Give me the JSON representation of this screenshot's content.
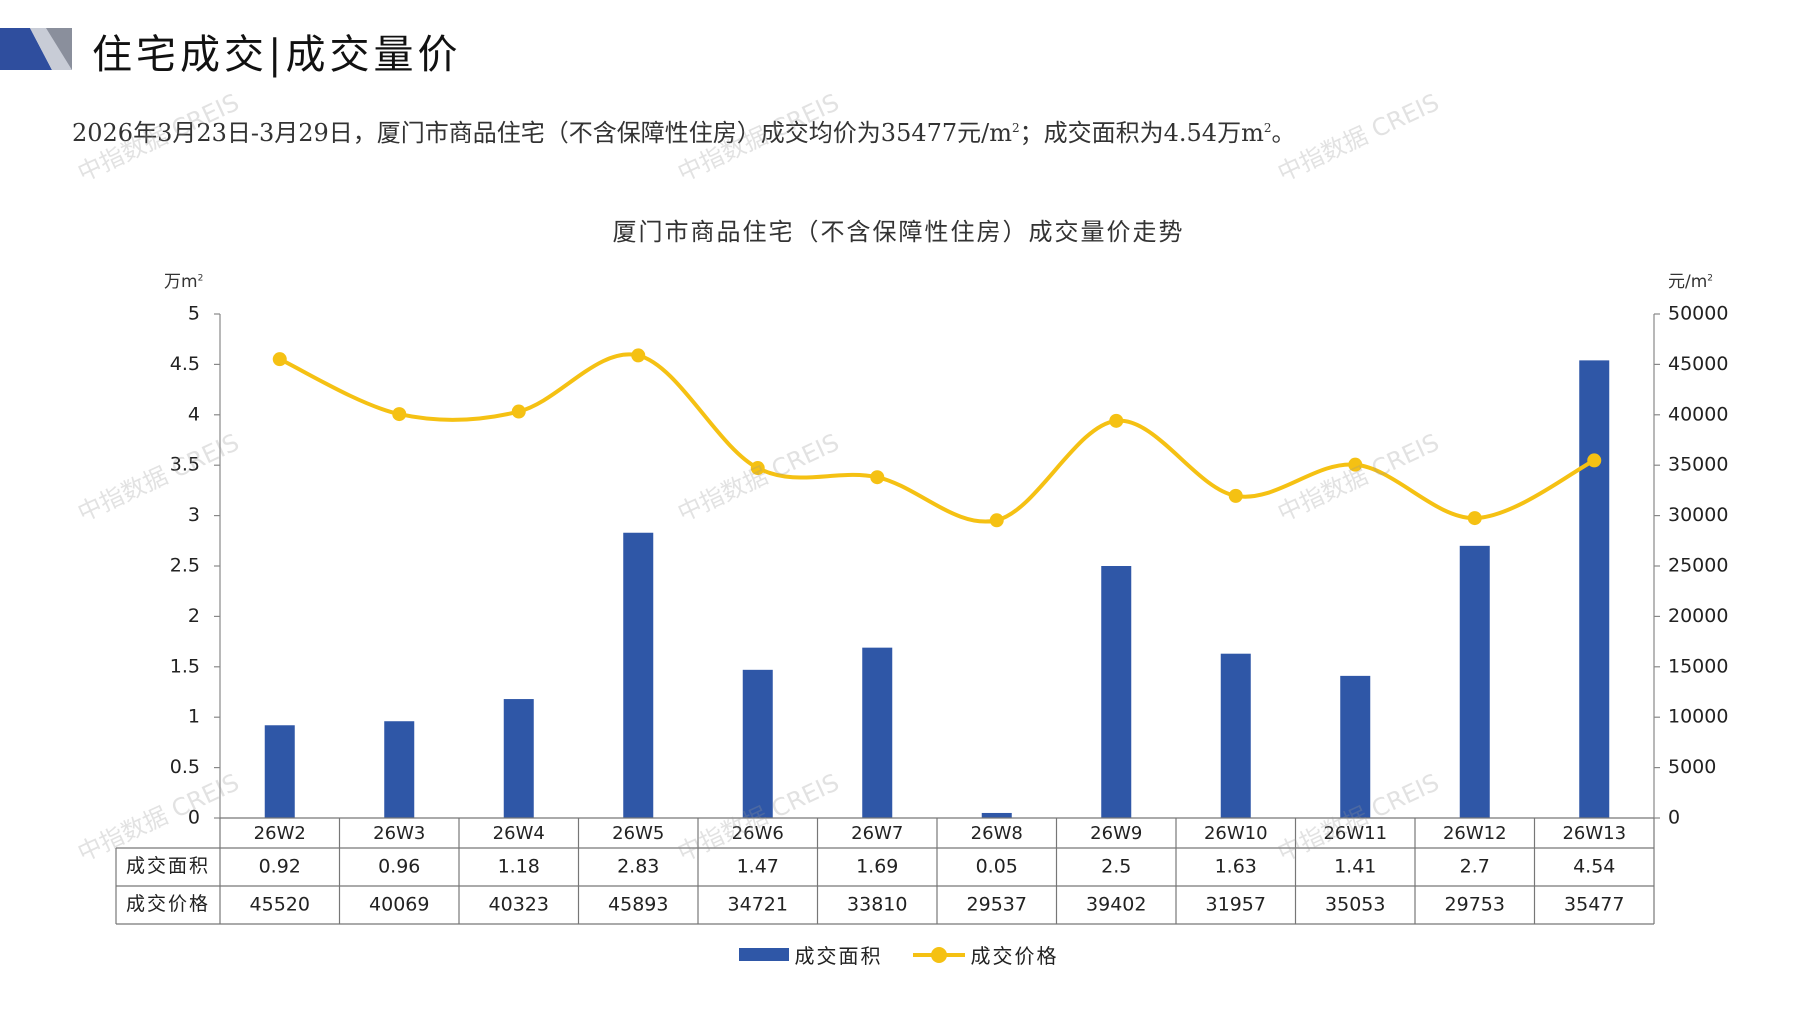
{
  "header": {
    "title": "住宅成交|成交量价"
  },
  "summary": {
    "text_a": "2026年3月23日-3月29日，厦门市商品住宅（不含保障性住房）成交均价为35477元/m",
    "sup_a": "2",
    "text_b": "；成交面积为4.54万m",
    "sup_b": "2",
    "text_c": "。"
  },
  "units": {
    "left": "万m",
    "left_sup": "2",
    "right": "元/m",
    "right_sup": "2"
  },
  "watermark": "中指数据 CREIS",
  "colors": {
    "bar": "#2f57a7",
    "line": "#f5c113",
    "header_accent": "#2f4e9e"
  },
  "chart_data": {
    "type": "bar",
    "title": "厦门市商品住宅（不含保障性住房）成交量价走势",
    "categories": [
      "26W2",
      "26W3",
      "26W4",
      "26W5",
      "26W6",
      "26W7",
      "26W8",
      "26W9",
      "26W10",
      "26W11",
      "26W12",
      "26W13"
    ],
    "series": [
      {
        "name": "成交面积",
        "type": "bar",
        "axis": "left",
        "values": [
          0.92,
          0.96,
          1.18,
          2.83,
          1.47,
          1.69,
          0.05,
          2.5,
          1.63,
          1.41,
          2.7,
          4.54
        ],
        "display": [
          "0.92",
          "0.96",
          "1.18",
          "2.83",
          "1.47",
          "1.69",
          "0.05",
          "2.5",
          "1.63",
          "1.41",
          "2.7",
          "4.54"
        ]
      },
      {
        "name": "成交价格",
        "type": "line",
        "axis": "right",
        "values": [
          45520,
          40069,
          40323,
          45893,
          34721,
          33810,
          29537,
          39402,
          31957,
          35053,
          29753,
          35477
        ],
        "display": [
          "45520",
          "40069",
          "40323",
          "45893",
          "34721",
          "33810",
          "29537",
          "39402",
          "31957",
          "35053",
          "29753",
          "35477"
        ]
      }
    ],
    "ylim_left": [
      0,
      5
    ],
    "yticks_left": [
      "0",
      "0.5",
      "1",
      "1.5",
      "2",
      "2.5",
      "3",
      "3.5",
      "4",
      "4.5",
      "5"
    ],
    "ylim_right": [
      0,
      50000
    ],
    "yticks_right": [
      "0",
      "5000",
      "10000",
      "15000",
      "20000",
      "25000",
      "30000",
      "35000",
      "40000",
      "45000",
      "50000"
    ],
    "legend_position": "bottom",
    "data_table": true,
    "grid": false
  }
}
